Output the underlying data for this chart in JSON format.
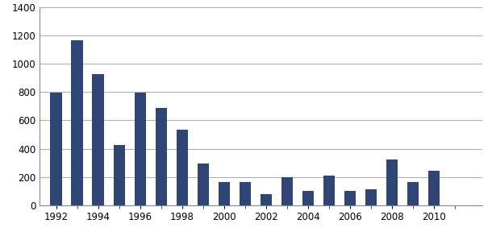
{
  "years": [
    1992,
    1993,
    1994,
    1995,
    1996,
    1997,
    1998,
    1999,
    2000,
    2001,
    2002,
    2003,
    2004,
    2005,
    2006,
    2007,
    2008,
    2009,
    2010,
    2011
  ],
  "values": [
    795,
    1163,
    928,
    425,
    795,
    690,
    532,
    295,
    165,
    165,
    80,
    200,
    100,
    210,
    100,
    115,
    325,
    165,
    243,
    0
  ],
  "bar_color": "#2E4575",
  "ylim": [
    0,
    1400
  ],
  "yticks": [
    0,
    200,
    400,
    600,
    800,
    1000,
    1200,
    1400
  ],
  "xtick_labels": [
    "1992",
    "1994",
    "1996",
    "1998",
    "2000",
    "2002",
    "2004",
    "2006",
    "2008",
    "2010"
  ],
  "xtick_positions": [
    1992,
    1994,
    1996,
    1998,
    2000,
    2002,
    2004,
    2006,
    2008,
    2010
  ],
  "background_color": "#ffffff",
  "grid_color": "#b0b0b0",
  "bar_width": 0.55
}
